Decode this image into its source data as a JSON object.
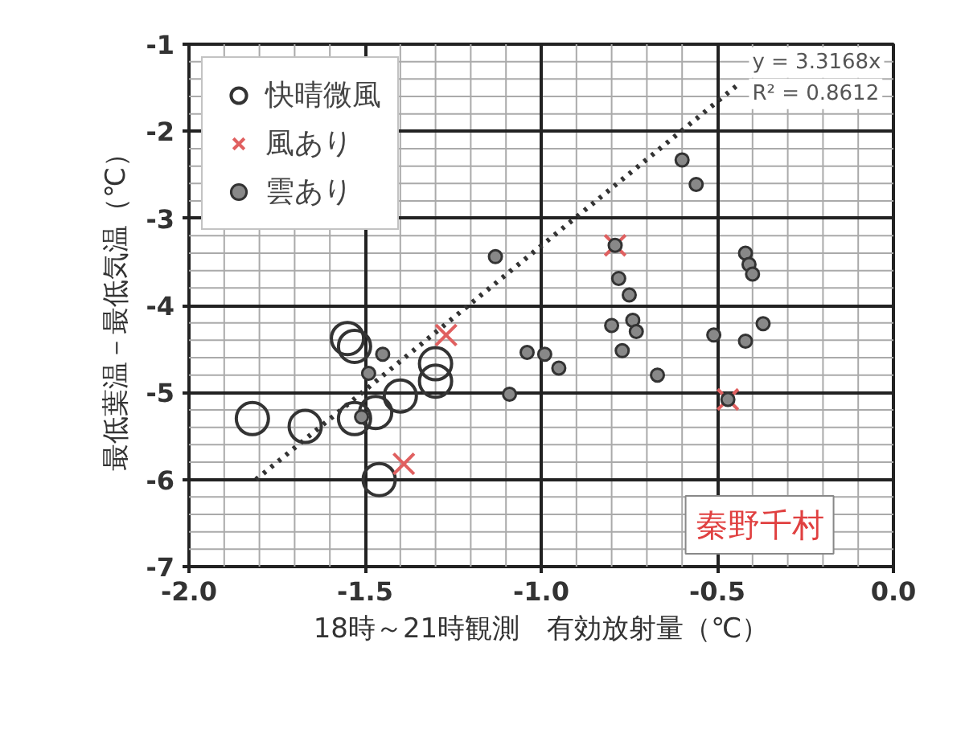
{
  "chart_data": {
    "type": "scatter",
    "xlabel": "18時～21時観測　有効放射量（℃）",
    "ylabel": "最低葉温－最低気温（℃）",
    "xlim": [
      -2.0,
      0.0
    ],
    "xticks": [
      {
        "value": -2.0,
        "label": "-2.0"
      },
      {
        "value": -1.5,
        "label": "-1.5"
      },
      {
        "value": -1.0,
        "label": "-1.0"
      },
      {
        "value": -0.5,
        "label": "-0.5"
      },
      {
        "value": 0.0,
        "label": "0.0"
      }
    ],
    "ylim": [
      -7,
      -1
    ],
    "yticks": [
      -7,
      -6,
      -5,
      -4,
      -3,
      -2,
      -1
    ],
    "grid": true,
    "legend": "top left",
    "annotations": [
      "y = 3.3168x",
      "R² = 0.8612",
      "秦野千村"
    ],
    "series": [
      {
        "name": "快晴微風",
        "color": "#333333",
        "marker": "circle",
        "x": [
          -1.82,
          -1.67,
          -1.55,
          -1.53,
          -1.53,
          -1.47,
          -1.4,
          -1.3,
          -1.3,
          -1.46
        ],
        "values": [
          -5.3,
          -5.39,
          -4.38,
          -4.47,
          -5.3,
          -5.23,
          -5.04,
          -4.87,
          -4.67,
          -6.0
        ]
      },
      {
        "name": "風あり",
        "color": "#e06060",
        "marker": "cross",
        "x": [
          -1.27,
          -1.39,
          -0.79,
          -0.47
        ],
        "values": [
          -4.34,
          -5.82,
          -3.31,
          -5.08
        ]
      },
      {
        "name": "雲あり",
        "color": "#888888",
        "marker": "circle",
        "x": [
          -1.13,
          -1.45,
          -1.49,
          -1.51,
          -1.04,
          -0.99,
          -0.95,
          -1.09,
          -0.6,
          -0.56,
          -0.79,
          -0.78,
          -0.75,
          -0.8,
          -0.74,
          -0.73,
          -0.77,
          -0.67,
          -0.51,
          -0.42,
          -0.41,
          -0.4,
          -0.37,
          -0.42,
          -0.47
        ],
        "values": [
          -3.44,
          -4.56,
          -4.78,
          -5.28,
          -4.54,
          -4.56,
          -4.72,
          -5.02,
          -2.33,
          -2.61,
          -3.31,
          -3.69,
          -3.88,
          -4.23,
          -4.17,
          -4.3,
          -4.52,
          -4.8,
          -4.34,
          -3.4,
          -3.53,
          -3.64,
          -4.21,
          -4.41,
          -5.08
        ]
      },
      {
        "type": "line",
        "color": "#333333",
        "line_style": "dotted",
        "x": [
          -1.81,
          -0.44
        ],
        "values": [
          -6.0,
          -1.46
        ]
      }
    ]
  }
}
